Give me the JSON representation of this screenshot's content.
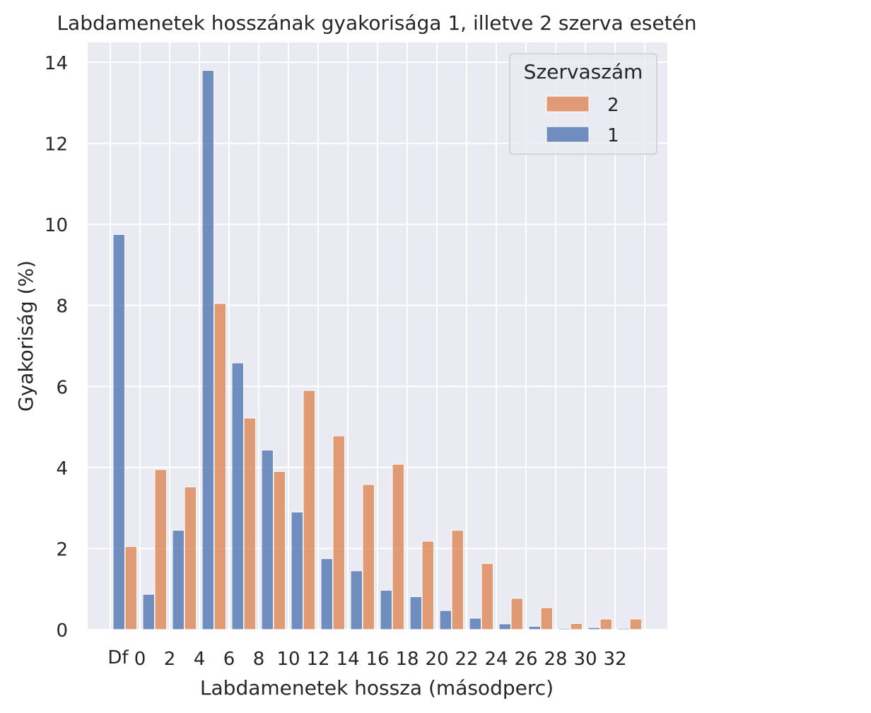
{
  "chart_data": {
    "type": "bar",
    "title": "Labdamenetek hosszának gyakorisága 1, illetve 2 szerva esetén",
    "xlabel": "Labdamenetek hossza (másodperc)",
    "ylabel": "Gyakoriság (%)",
    "ylim": [
      0,
      14.5
    ],
    "yticks": [
      "0",
      "2",
      "4",
      "6",
      "8",
      "10",
      "12",
      "14"
    ],
    "xticks": [
      "0",
      "2",
      "4",
      "6",
      "8",
      "10",
      "12",
      "14",
      "16",
      "18",
      "20",
      "22",
      "24",
      "26",
      "28",
      "30",
      "32"
    ],
    "xtick_extra": "Df",
    "grid": true,
    "legend_position": "top-right",
    "legend_title": "Szervaszám",
    "categories": [
      "Df",
      "0-2",
      "2-4",
      "4-6",
      "6-8",
      "8-10",
      "10-12",
      "12-14",
      "14-16",
      "16-18",
      "18-20",
      "20-22",
      "22-24",
      "24-26",
      "26-28",
      "28-30",
      "30-32",
      "32-34"
    ],
    "series": [
      {
        "name": "1",
        "color": "#4c72b0",
        "values": [
          9.75,
          0.87,
          2.45,
          13.8,
          6.58,
          4.43,
          2.9,
          1.75,
          1.45,
          0.97,
          0.81,
          0.47,
          0.28,
          0.14,
          0.08,
          0.03,
          0.05,
          0.03
        ]
      },
      {
        "name": "2",
        "color": "#dd8452",
        "values": [
          2.05,
          3.95,
          3.52,
          8.05,
          5.22,
          3.9,
          5.9,
          4.78,
          3.58,
          4.08,
          2.18,
          2.45,
          1.63,
          0.77,
          0.54,
          0.15,
          0.26,
          0.26
        ]
      }
    ]
  }
}
